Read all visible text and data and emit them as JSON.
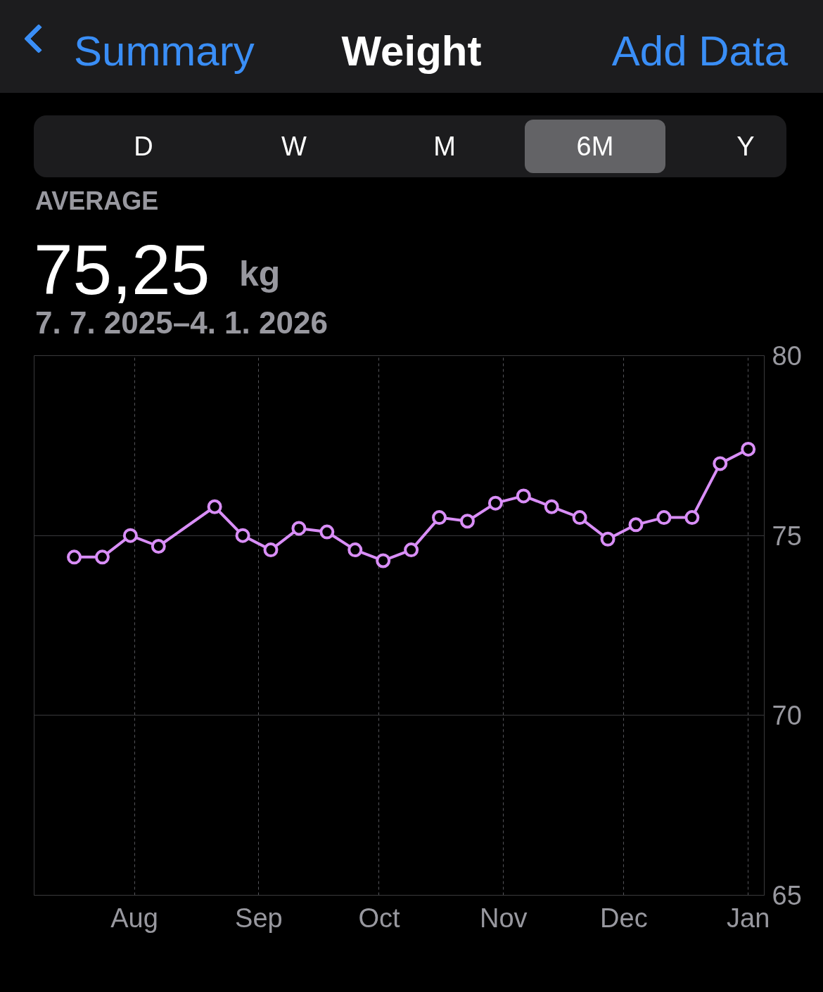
{
  "chart_data": {
    "type": "line",
    "title": "Weight",
    "annotations": [
      "Summary",
      "Add Data",
      "D",
      "W",
      "M",
      "6M",
      "Y",
      "AVERAGE",
      "75,25",
      "kg",
      "7. 7. 2025–4. 1. 2026"
    ],
    "x": [
      "2025-07-17",
      "2025-07-24",
      "2025-07-31",
      "2025-08-07",
      "2025-08-21",
      "2025-08-28",
      "2025-09-04",
      "2025-09-11",
      "2025-09-18",
      "2025-09-25",
      "2025-10-02",
      "2025-10-09",
      "2025-10-16",
      "2025-10-23",
      "2025-10-30",
      "2025-11-06",
      "2025-11-13",
      "2025-11-20",
      "2025-11-27",
      "2025-12-04",
      "2025-12-11",
      "2025-12-18",
      "2025-12-25",
      "2026-01-01"
    ],
    "series": [
      {
        "color": "#d98ef7",
        "values": [
          74.4,
          74.4,
          75.0,
          74.7,
          75.8,
          75.0,
          74.6,
          75.2,
          75.1,
          74.6,
          74.3,
          74.6,
          75.5,
          75.4,
          75.9,
          76.1,
          75.8,
          75.5,
          74.9,
          75.3,
          75.5,
          75.5,
          77.0,
          77.4
        ]
      }
    ],
    "xlim": [
      "2025-07-07",
      "2026-01-05"
    ],
    "xticks": [
      {
        "value": "2025-08-01",
        "label": "Aug"
      },
      {
        "value": "2025-09-01",
        "label": "Sep"
      },
      {
        "value": "2025-10-01",
        "label": "Oct"
      },
      {
        "value": "2025-11-01",
        "label": "Nov"
      },
      {
        "value": "2025-12-01",
        "label": "Dec"
      },
      {
        "value": "2026-01-01",
        "label": "Jan"
      }
    ],
    "ylim": [
      65,
      80
    ],
    "yticks": [
      65,
      70,
      75,
      80
    ],
    "grid": true,
    "marker": "circle",
    "line_style": "solid"
  }
}
